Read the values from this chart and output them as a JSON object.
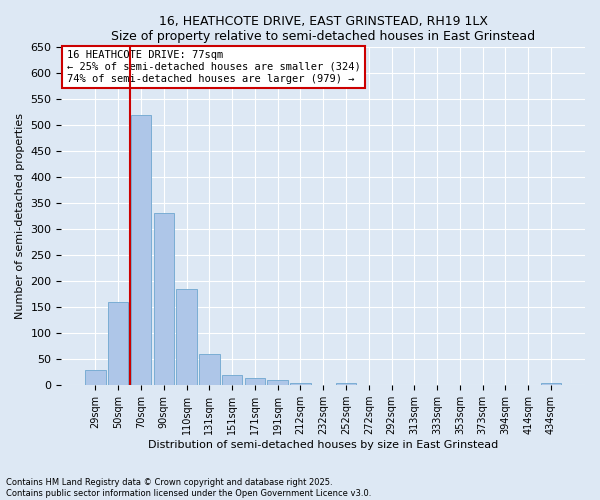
{
  "title": "16, HEATHCOTE DRIVE, EAST GRINSTEAD, RH19 1LX",
  "subtitle": "Size of property relative to semi-detached houses in East Grinstead",
  "xlabel": "Distribution of semi-detached houses by size in East Grinstead",
  "ylabel": "Number of semi-detached properties",
  "categories": [
    "29sqm",
    "50sqm",
    "70sqm",
    "90sqm",
    "110sqm",
    "131sqm",
    "151sqm",
    "171sqm",
    "191sqm",
    "212sqm",
    "232sqm",
    "252sqm",
    "272sqm",
    "292sqm",
    "313sqm",
    "333sqm",
    "353sqm",
    "373sqm",
    "394sqm",
    "414sqm",
    "434sqm"
  ],
  "values": [
    30,
    160,
    520,
    330,
    185,
    60,
    20,
    13,
    10,
    5,
    0,
    5,
    0,
    0,
    0,
    0,
    0,
    0,
    0,
    0,
    5
  ],
  "bar_color": "#aec6e8",
  "bar_edge_color": "#7aadd4",
  "vline_x_index": 2,
  "vline_color": "#cc0000",
  "annotation_text": "16 HEATHCOTE DRIVE: 77sqm\n← 25% of semi-detached houses are smaller (324)\n74% of semi-detached houses are larger (979) →",
  "annotation_box_color": "#cc0000",
  "ylim": [
    0,
    650
  ],
  "yticks": [
    0,
    50,
    100,
    150,
    200,
    250,
    300,
    350,
    400,
    450,
    500,
    550,
    600,
    650
  ],
  "bg_color": "#dde8f4",
  "footnote1": "Contains HM Land Registry data © Crown copyright and database right 2025.",
  "footnote2": "Contains public sector information licensed under the Open Government Licence v3.0."
}
